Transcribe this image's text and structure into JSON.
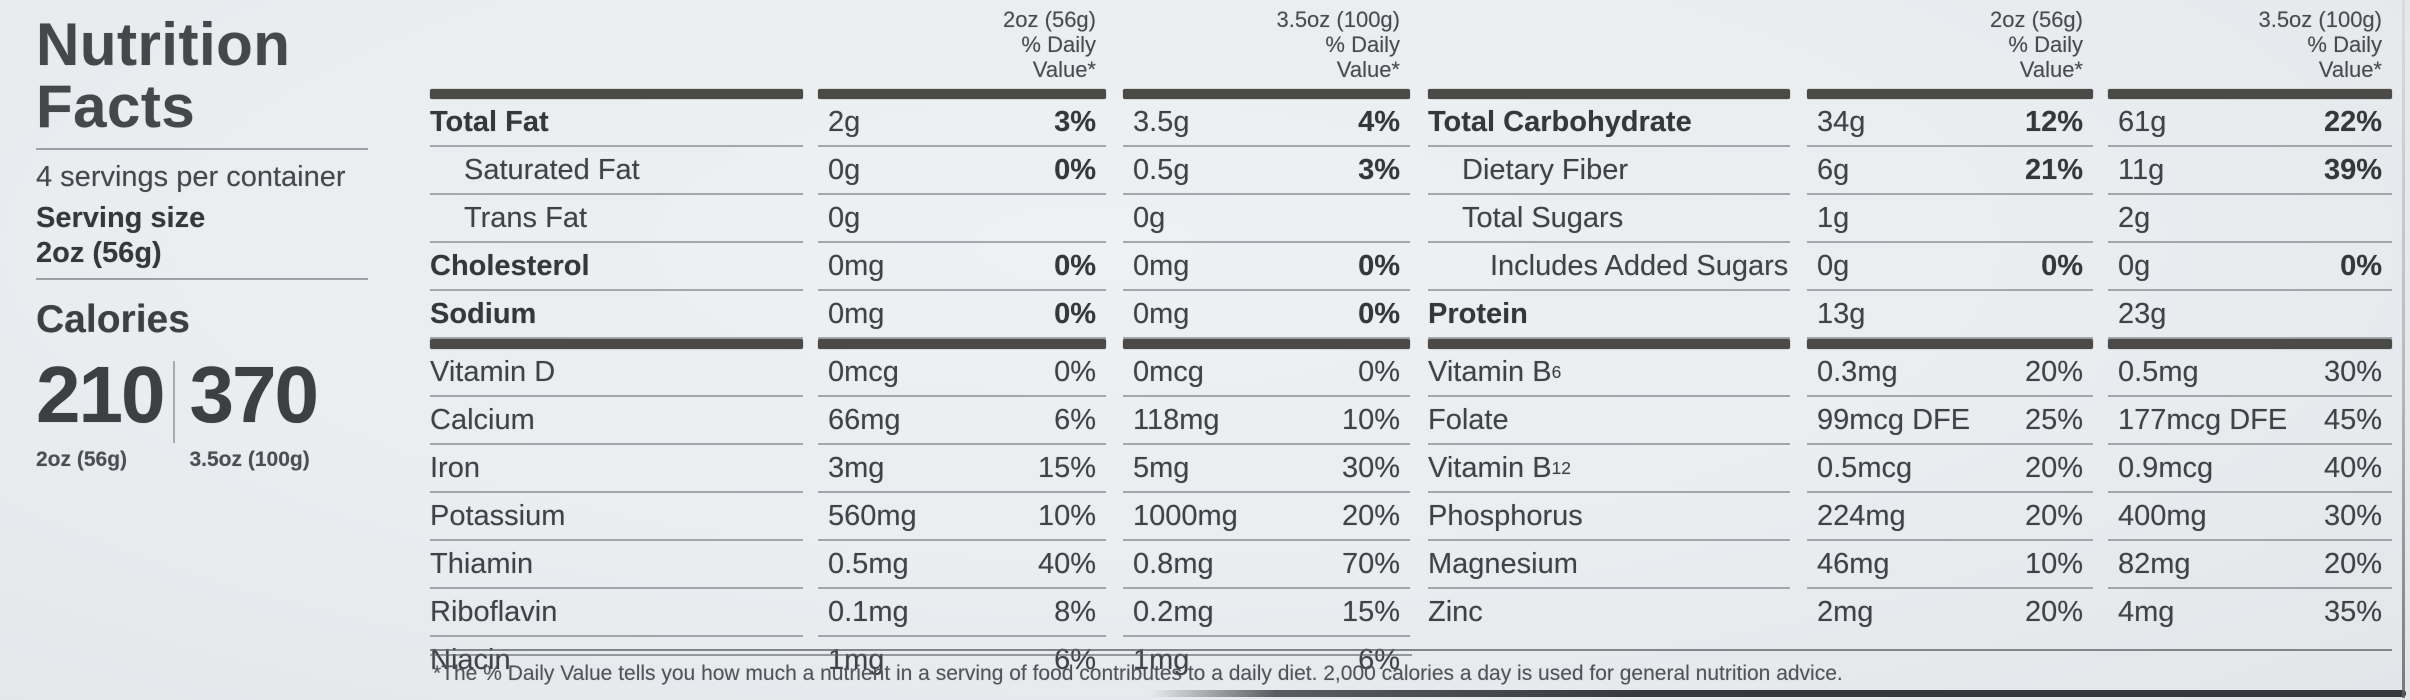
{
  "colors": {
    "paper": "#E9EDF0",
    "ink": "#3F4347",
    "ink_bold": "#34383B",
    "bar": "#4B4A46",
    "rule": "#9BA1A6",
    "edge": "#35383C"
  },
  "panel": {
    "title_line1": "Nutrition",
    "title_line2": "Facts",
    "servings": "4 servings per container",
    "serving_size_label": "Serving size",
    "serving_size_value": "2oz (56g)",
    "calories_label": "Calories",
    "calories": [
      {
        "value": "210",
        "serving": "2oz (56g)"
      },
      {
        "value": "370",
        "serving": "3.5oz (100g)"
      }
    ]
  },
  "column_headers": {
    "col1": [
      "2oz (56g)",
      "% Daily",
      "Value*"
    ],
    "col2": [
      "3.5oz (100g)",
      "% Daily",
      "Value*"
    ]
  },
  "tables": [
    {
      "sections": [
        {
          "rows": [
            {
              "name": "Total Fat",
              "bold": true,
              "indent": 0,
              "a1": "2g",
              "p1": "3%",
              "a2": "3.5g",
              "p2": "4%",
              "pb": true
            },
            {
              "name": "Saturated Fat",
              "bold": false,
              "indent": 1,
              "a1": "0g",
              "p1": "0%",
              "a2": "0.5g",
              "p2": "3%",
              "pb": true
            },
            {
              "name": "Trans Fat",
              "bold": false,
              "indent": 1,
              "a1": "0g",
              "p1": "",
              "a2": "0g",
              "p2": "",
              "pb": false
            },
            {
              "name": "Cholesterol",
              "bold": true,
              "indent": 0,
              "a1": "0mg",
              "p1": "0%",
              "a2": "0mg",
              "p2": "0%",
              "pb": true
            },
            {
              "name": "Sodium",
              "bold": true,
              "indent": 0,
              "a1": "0mg",
              "p1": "0%",
              "a2": "0mg",
              "p2": "0%",
              "pb": true
            }
          ]
        },
        {
          "rows": [
            {
              "name": "Vitamin D",
              "a1": "0mcg",
              "p1": "0%",
              "a2": "0mcg",
              "p2": "0%"
            },
            {
              "name": "Calcium",
              "a1": "66mg",
              "p1": "6%",
              "a2": "118mg",
              "p2": "10%"
            },
            {
              "name": "Iron",
              "a1": "3mg",
              "p1": "15%",
              "a2": "5mg",
              "p2": "30%"
            },
            {
              "name": "Potassium",
              "a1": "560mg",
              "p1": "10%",
              "a2": "1000mg",
              "p2": "20%"
            },
            {
              "name": "Thiamin",
              "a1": "0.5mg",
              "p1": "40%",
              "a2": "0.8mg",
              "p2": "70%"
            },
            {
              "name": "Riboflavin",
              "a1": "0.1mg",
              "p1": "8%",
              "a2": "0.2mg",
              "p2": "15%"
            },
            {
              "name": "Niacin",
              "a1": "1mg",
              "p1": "6%",
              "a2": "1mg",
              "p2": "6%",
              "last": true
            }
          ]
        }
      ]
    },
    {
      "sections": [
        {
          "rows": [
            {
              "name": "Total Carbohydrate",
              "bold": true,
              "indent": 0,
              "a1": "34g",
              "p1": "12%",
              "a2": "61g",
              "p2": "22%",
              "pb": true
            },
            {
              "name": "Dietary Fiber",
              "bold": false,
              "indent": 1,
              "a1": "6g",
              "p1": "21%",
              "a2": "11g",
              "p2": "39%",
              "pb": true
            },
            {
              "name": "Total Sugars",
              "bold": false,
              "indent": 1,
              "a1": "1g",
              "p1": "",
              "a2": "2g",
              "p2": "",
              "pb": false
            },
            {
              "name": "Includes Added Sugars",
              "bold": false,
              "indent": 2,
              "a1": "0g",
              "p1": "0%",
              "a2": "0g",
              "p2": "0%",
              "pb": true
            },
            {
              "name": "Protein",
              "bold": true,
              "indent": 0,
              "a1": "13g",
              "p1": "",
              "a2": "23g",
              "p2": "",
              "pb": false
            }
          ]
        },
        {
          "rows": [
            {
              "name": "Vitamin B",
              "sub": "6",
              "a1": "0.3mg",
              "p1": "20%",
              "a2": "0.5mg",
              "p2": "30%"
            },
            {
              "name": "Folate",
              "a1": "99mcg DFE",
              "p1": "25%",
              "a2": "177mcg DFE",
              "p2": "45%"
            },
            {
              "name": "Vitamin B",
              "sub": "12",
              "a1": "0.5mcg",
              "p1": "20%",
              "a2": "0.9mcg",
              "p2": "40%"
            },
            {
              "name": "Phosphorus",
              "a1": "224mg",
              "p1": "20%",
              "a2": "400mg",
              "p2": "30%"
            },
            {
              "name": "Magnesium",
              "a1": "46mg",
              "p1": "10%",
              "a2": "82mg",
              "p2": "20%"
            },
            {
              "name": "Zinc",
              "a1": "2mg",
              "p1": "20%",
              "a2": "4mg",
              "p2": "35%",
              "last": true
            }
          ]
        }
      ]
    }
  ],
  "footnote": "*The % Daily Value tells you how much a nutrient in a serving of food contributes to a daily diet. 2,000 calories a day is used for general nutrition advice."
}
